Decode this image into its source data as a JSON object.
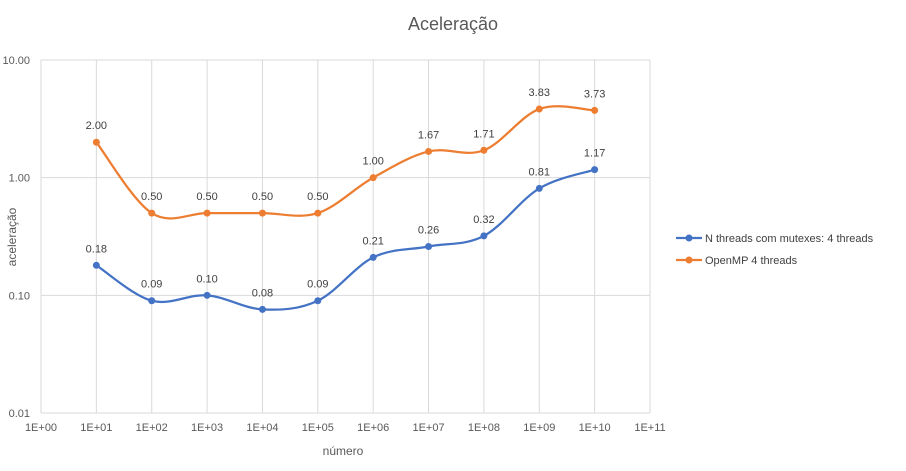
{
  "chart_data": {
    "type": "line",
    "title": "Aceleração",
    "xlabel": "número",
    "ylabel": "aceleração",
    "x_scale": "log",
    "y_scale": "log",
    "x_ticks": [
      "1E+00",
      "1E+01",
      "1E+02",
      "1E+03",
      "1E+04",
      "1E+05",
      "1E+06",
      "1E+07",
      "1E+08",
      "1E+09",
      "1E+10",
      "1E+11"
    ],
    "x_tick_values": [
      1,
      10,
      100,
      1000,
      10000,
      100000,
      1000000,
      10000000,
      100000000,
      1000000000,
      10000000000,
      100000000000
    ],
    "y_ticks": [
      "10.00",
      "1.00",
      "0.10",
      "0.01"
    ],
    "y_tick_values": [
      10,
      1,
      0.1,
      0.01
    ],
    "xlim": [
      1,
      100000000000
    ],
    "ylim": [
      0.01,
      10
    ],
    "grid": true,
    "legend_position": "right",
    "x": [
      10,
      100,
      1000,
      10000,
      100000,
      1000000,
      10000000,
      100000000,
      1000000000,
      10000000000
    ],
    "series": [
      {
        "name": "N threads com mutexes: 4 threads",
        "color": "#4472C4",
        "values": [
          0.18,
          0.09,
          0.1,
          0.076,
          0.09,
          0.21,
          0.26,
          0.32,
          0.81,
          1.17
        ],
        "labels": [
          "0.18",
          "0.09",
          "0.10",
          "0.08",
          "0.09",
          "0.21",
          "0.26",
          "0.32",
          "0.81",
          "1.17"
        ]
      },
      {
        "name": "OpenMP 4 threads",
        "color": "#ED7D31",
        "values": [
          2.0,
          0.5,
          0.5,
          0.5,
          0.5,
          1.0,
          1.67,
          1.71,
          3.83,
          3.73
        ],
        "labels": [
          "2.00",
          "0.50",
          "0.50",
          "0.50",
          "0.50",
          "1.00",
          "1.67",
          "1.71",
          "3.83",
          "3.73"
        ]
      }
    ]
  }
}
